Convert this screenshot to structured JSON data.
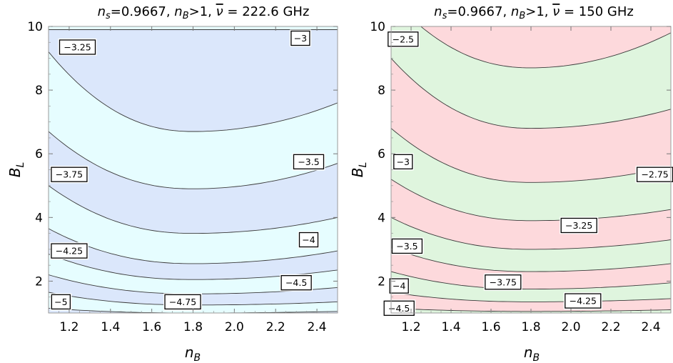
{
  "colors": {
    "panel1_band_a": "#e6fdff",
    "panel1_band_b": "#dbe7fb",
    "panel2_band_a": "#fdd9dc",
    "panel2_band_b": "#dff5de",
    "contour_line": "#3a3a3a",
    "frame": "#9a9a9a"
  },
  "chart_data": [
    {
      "type": "contour",
      "title_parts": {
        "ns": "n",
        "ns_sub": "s",
        "ns_val": "=0.9667,  ",
        "nb": "n",
        "nb_sub": "B",
        "nb_val": ">1,  ",
        "nu": "ν",
        "nu_val": " = 222.6 GHz"
      },
      "xlabel": "n",
      "xlabel_sub": "B",
      "ylabel": "B",
      "ylabel_sub": "L",
      "xlim": [
        1.1,
        2.5
      ],
      "ylim": [
        1,
        10
      ],
      "xticks": [
        "1.2",
        "1.4",
        "1.6",
        "1.8",
        "2.0",
        "2.2",
        "2.4"
      ],
      "xtick_values": [
        1.2,
        1.4,
        1.6,
        1.8,
        2.0,
        2.2,
        2.4
      ],
      "yticks": [
        "2",
        "4",
        "6",
        "8",
        "10"
      ],
      "ytick_values": [
        2,
        4,
        6,
        8,
        10
      ],
      "contours": [
        {
          "level": -3,
          "label": "−3",
          "left": 9.9,
          "min": 9.9,
          "right": 9.9
        },
        {
          "level": -3.25,
          "label": "−3.25",
          "left": 9.2,
          "min": 6.7,
          "right": 7.6
        },
        {
          "level": -3.5,
          "label": "−3.5",
          "left": 6.7,
          "min": 4.9,
          "right": 5.7
        },
        {
          "level": -3.75,
          "label": "−3.75",
          "left": 5.0,
          "min": 3.5,
          "right": 4.0
        },
        {
          "level": -4,
          "label": "−4",
          "left": 3.65,
          "min": 2.55,
          "right": 2.95
        },
        {
          "level": -4.25,
          "label": "−4.25",
          "left": 2.85,
          "min": 2.05,
          "right": 2.35
        },
        {
          "level": -4.5,
          "label": "−4.5",
          "left": 2.2,
          "min": 1.6,
          "right": 1.8
        },
        {
          "level": -4.75,
          "label": "−4.75",
          "left": 1.65,
          "min": 1.25,
          "right": 1.35
        },
        {
          "level": -5,
          "label": "−5",
          "left": 1.15,
          "min": 1.0,
          "right": 1.05
        }
      ],
      "labels": [
        {
          "text": "−3.25",
          "x": 1.24,
          "y": 9.35
        },
        {
          "text": "−3",
          "x": 2.32,
          "y": 9.63
        },
        {
          "text": "−3.5",
          "x": 2.36,
          "y": 5.75
        },
        {
          "text": "−3.75",
          "x": 1.2,
          "y": 5.35
        },
        {
          "text": "−4",
          "x": 2.36,
          "y": 3.3
        },
        {
          "text": "−4.25",
          "x": 1.2,
          "y": 2.95
        },
        {
          "text": "−4.5",
          "x": 2.3,
          "y": 1.95
        },
        {
          "text": "−4.75",
          "x": 1.75,
          "y": 1.35
        },
        {
          "text": "−5",
          "x": 1.16,
          "y": 1.35
        }
      ]
    },
    {
      "type": "contour",
      "title_parts": {
        "ns": "n",
        "ns_sub": "s",
        "ns_val": "=0.9667,  ",
        "nb": "n",
        "nb_sub": "B",
        "nb_val": ">1,  ",
        "nu": "ν",
        "nu_val": " = 150 GHz"
      },
      "xlabel": "n",
      "xlabel_sub": "B",
      "ylabel": "B",
      "ylabel_sub": "L",
      "xlim": [
        1.1,
        2.5
      ],
      "ylim": [
        1,
        10
      ],
      "xticks": [
        "1.2",
        "1.4",
        "1.6",
        "1.8",
        "2.0",
        "2.2",
        "2.4"
      ],
      "xtick_values": [
        1.2,
        1.4,
        1.6,
        1.8,
        2.0,
        2.2,
        2.4
      ],
      "yticks": [
        "2",
        "4",
        "6",
        "8",
        "10"
      ],
      "ytick_values": [
        2,
        4,
        6,
        8,
        10
      ],
      "contours": [
        {
          "level": -2.5,
          "label": "−2.5",
          "left": 10.9,
          "min": 8.7,
          "right": 9.8
        },
        {
          "level": -2.75,
          "label": "−2.75",
          "left": 9.0,
          "min": 6.8,
          "right": 7.4
        },
        {
          "level": -3,
          "label": "−3",
          "left": 6.8,
          "min": 5.1,
          "right": 5.6
        },
        {
          "level": -3.25,
          "label": "−3.25",
          "left": 5.2,
          "min": 3.9,
          "right": 4.25
        },
        {
          "level": -3.5,
          "label": "−3.5",
          "left": 4.0,
          "min": 3.0,
          "right": 3.3
        },
        {
          "level": -3.75,
          "label": "−3.75",
          "left": 3.05,
          "min": 2.3,
          "right": 2.55
        },
        {
          "level": -4,
          "label": "−4",
          "left": 2.3,
          "min": 1.75,
          "right": 1.95
        },
        {
          "level": -4.25,
          "label": "−4.25",
          "left": 1.65,
          "min": 1.35,
          "right": 1.45
        },
        {
          "level": -4.5,
          "label": "−4.5",
          "left": 1.15,
          "min": 1.05,
          "right": 1.1
        }
      ],
      "labels": [
        {
          "text": "−2.5",
          "x": 1.16,
          "y": 9.6
        },
        {
          "text": "−2.75",
          "x": 2.42,
          "y": 5.35
        },
        {
          "text": "−3",
          "x": 1.16,
          "y": 5.75
        },
        {
          "text": "−3.25",
          "x": 2.04,
          "y": 3.75
        },
        {
          "text": "−3.5",
          "x": 1.18,
          "y": 3.1
        },
        {
          "text": "−3.75",
          "x": 1.66,
          "y": 1.97
        },
        {
          "text": "−4",
          "x": 1.14,
          "y": 1.85
        },
        {
          "text": "−4.25",
          "x": 2.06,
          "y": 1.38
        },
        {
          "text": "−4.5",
          "x": 1.14,
          "y": 1.15
        }
      ]
    }
  ]
}
